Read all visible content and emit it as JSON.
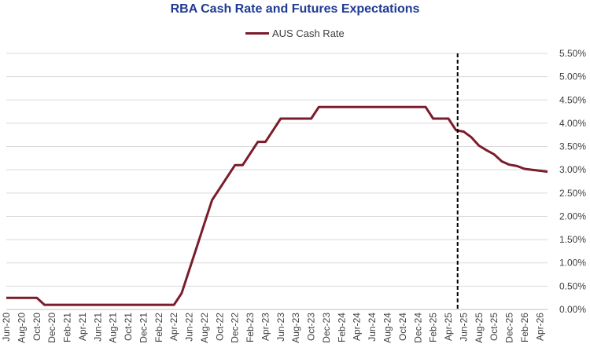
{
  "chart_data": {
    "type": "line",
    "title": "RBA Cash Rate and Futures Expectations",
    "xlabel": "",
    "ylabel": "",
    "ylim": [
      0,
      5.5
    ],
    "grid": true,
    "legend_position": "top-center",
    "y_ticks": [
      "0.00%",
      "0.50%",
      "1.00%",
      "1.50%",
      "2.00%",
      "2.50%",
      "3.00%",
      "3.50%",
      "4.00%",
      "4.50%",
      "5.00%",
      "5.50%"
    ],
    "x_tick_labels": [
      "Jun-20",
      "Aug-20",
      "Oct-20",
      "Dec-20",
      "Feb-21",
      "Apr-21",
      "Jun-21",
      "Aug-21",
      "Oct-21",
      "Dec-21",
      "Feb-22",
      "Apr-22",
      "Jun-22",
      "Aug-22",
      "Oct-22",
      "Dec-22",
      "Feb-23",
      "Apr-23",
      "Jun-23",
      "Aug-23",
      "Oct-23",
      "Dec-23",
      "Feb-24",
      "Apr-24",
      "Jun-24",
      "Aug-24",
      "Oct-24",
      "Dec-24",
      "Feb-25",
      "Apr-25",
      "Jun-25",
      "Aug-25",
      "Oct-25",
      "Dec-25",
      "Feb-26",
      "Apr-26"
    ],
    "x_months": [
      "2020-06",
      "2020-07",
      "2020-08",
      "2020-09",
      "2020-10",
      "2020-11",
      "2020-12",
      "2021-01",
      "2021-02",
      "2021-03",
      "2021-04",
      "2021-05",
      "2021-06",
      "2021-07",
      "2021-08",
      "2021-09",
      "2021-10",
      "2021-11",
      "2021-12",
      "2022-01",
      "2022-02",
      "2022-03",
      "2022-04",
      "2022-05",
      "2022-06",
      "2022-07",
      "2022-08",
      "2022-09",
      "2022-10",
      "2022-11",
      "2022-12",
      "2023-01",
      "2023-02",
      "2023-03",
      "2023-04",
      "2023-05",
      "2023-06",
      "2023-07",
      "2023-08",
      "2023-09",
      "2023-10",
      "2023-11",
      "2023-12",
      "2024-01",
      "2024-02",
      "2024-03",
      "2024-04",
      "2024-05",
      "2024-06",
      "2024-07",
      "2024-08",
      "2024-09",
      "2024-10",
      "2024-11",
      "2024-12",
      "2025-01",
      "2025-02",
      "2025-03",
      "2025-04",
      "2025-05",
      "2025-06",
      "2025-07",
      "2025-08",
      "2025-09",
      "2025-10",
      "2025-11",
      "2025-12",
      "2026-01",
      "2026-02",
      "2026-03",
      "2026-04",
      "2026-05"
    ],
    "series": [
      {
        "name": "AUS Cash Rate",
        "color": "#7b1c2c",
        "values": [
          0.25,
          0.25,
          0.25,
          0.25,
          0.25,
          0.1,
          0.1,
          0.1,
          0.1,
          0.1,
          0.1,
          0.1,
          0.1,
          0.1,
          0.1,
          0.1,
          0.1,
          0.1,
          0.1,
          0.1,
          0.1,
          0.1,
          0.1,
          0.35,
          0.85,
          1.35,
          1.85,
          2.35,
          2.6,
          2.85,
          3.1,
          3.1,
          3.35,
          3.6,
          3.6,
          3.85,
          4.1,
          4.1,
          4.1,
          4.1,
          4.1,
          4.35,
          4.35,
          4.35,
          4.35,
          4.35,
          4.35,
          4.35,
          4.35,
          4.35,
          4.35,
          4.35,
          4.35,
          4.35,
          4.35,
          4.35,
          4.1,
          4.1,
          4.1,
          3.85,
          3.82,
          3.7,
          3.52,
          3.42,
          3.33,
          3.18,
          3.11,
          3.08,
          3.02,
          3.0,
          2.98,
          2.96
        ]
      }
    ],
    "annotation": {
      "type": "vertical-dashed-line",
      "x": "2025-05"
    }
  }
}
